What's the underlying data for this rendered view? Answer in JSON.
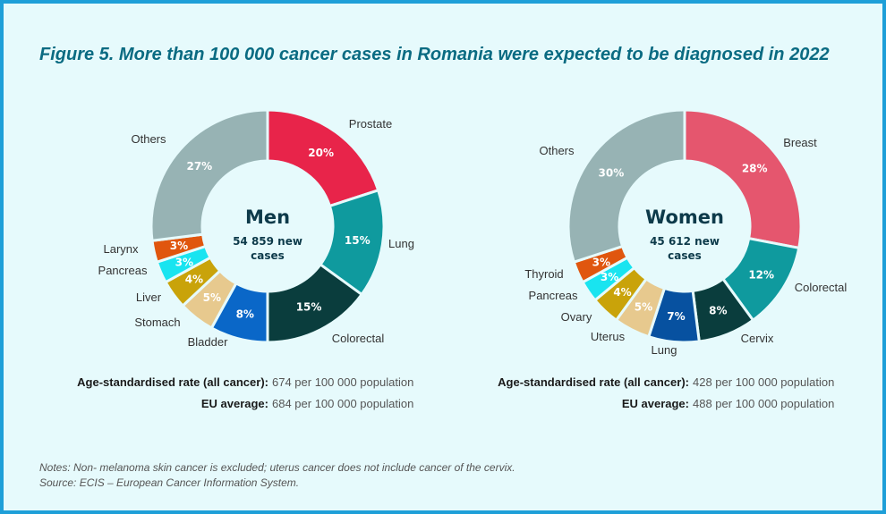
{
  "title": "Figure 5. More than 100 000 cancer cases in Romania were expected to be diagnosed in 2022",
  "chart_data": [
    {
      "type": "pie",
      "center_title": "Men",
      "center_subtitle_1": "54 859 new",
      "center_subtitle_2": "cases",
      "slices": [
        {
          "label": "Prostate",
          "value": 20,
          "display": "20%",
          "color": "#e8244a"
        },
        {
          "label": "Lung",
          "value": 15,
          "display": "15%",
          "color": "#0f9a9e"
        },
        {
          "label": "Colorectal",
          "value": 15,
          "display": "15%",
          "color": "#0a3d3d"
        },
        {
          "label": "Bladder",
          "value": 8,
          "display": "8%",
          "color": "#0a67c8"
        },
        {
          "label": "Stomach",
          "value": 5,
          "display": "5%",
          "color": "#e7c98e"
        },
        {
          "label": "Liver",
          "value": 4,
          "display": "4%",
          "color": "#c9a30a"
        },
        {
          "label": "Pancreas",
          "value": 3,
          "display": "3%",
          "color": "#19e4f0"
        },
        {
          "label": "Larynx",
          "value": 3,
          "display": "3%",
          "color": "#e0560e"
        },
        {
          "label": "Others",
          "value": 27,
          "display": "27%",
          "color": "#97b3b4"
        }
      ]
    },
    {
      "type": "pie",
      "center_title": "Women",
      "center_subtitle_1": "45 612 new",
      "center_subtitle_2": "cases",
      "slices": [
        {
          "label": "Breast",
          "value": 28,
          "display": "28%",
          "color": "#e5566e"
        },
        {
          "label": "Colorectal",
          "value": 12,
          "display": "12%",
          "color": "#0f9a9e"
        },
        {
          "label": "Cervix",
          "value": 8,
          "display": "8%",
          "color": "#0a3d3d"
        },
        {
          "label": "Lung",
          "value": 7,
          "display": "7%",
          "color": "#0751a0"
        },
        {
          "label": "Uterus",
          "value": 5,
          "display": "5%",
          "color": "#e7c98e"
        },
        {
          "label": "Ovary",
          "value": 4,
          "display": "4%",
          "color": "#c9a30a"
        },
        {
          "label": "Pancreas",
          "value": 3,
          "display": "3%",
          "color": "#19e4f0"
        },
        {
          "label": "Thyroid",
          "value": 3,
          "display": "3%",
          "color": "#e0560e"
        },
        {
          "label": "Others",
          "value": 30,
          "display": "30%",
          "color": "#97b3b4"
        }
      ]
    }
  ],
  "rates": {
    "men": {
      "asr_label": "Age-standardised rate (all cancer):",
      "asr_value": "674 per 100 000 population",
      "eu_label": "EU average:",
      "eu_value": "684 per 100 000 population"
    },
    "women": {
      "asr_label": "Age-standardised rate (all cancer):",
      "asr_value": "428 per 100 000 population",
      "eu_label": "EU average:",
      "eu_value": "488 per 100 000 population"
    }
  },
  "notes": {
    "line1": "Notes: Non- melanoma skin cancer is excluded; uterus cancer does not include cancer of the cervix.",
    "line2": "Source: ECIS – European Cancer Information System."
  }
}
